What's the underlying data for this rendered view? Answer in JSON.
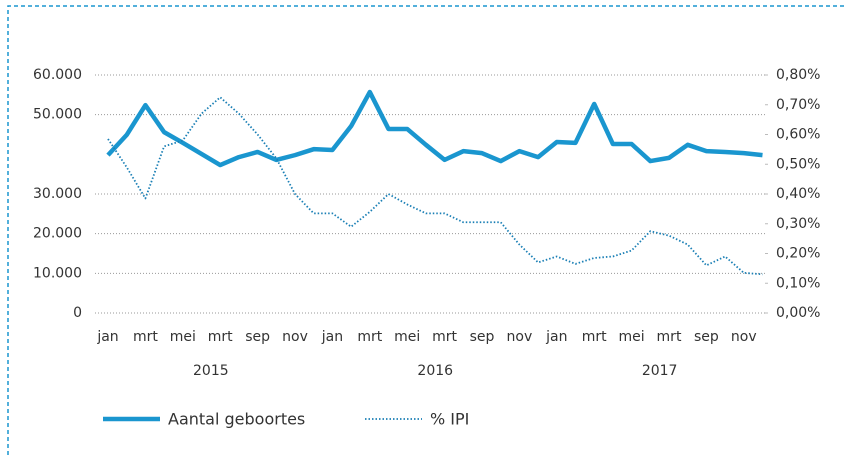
{
  "chart_data": {
    "type": "line",
    "categories": [
      "jan",
      null,
      "mrt",
      null,
      "mei",
      null,
      "mrt",
      null,
      "sep",
      null,
      "nov",
      null,
      "jan",
      null,
      "mrt",
      null,
      "mei",
      null,
      "mrt",
      null,
      "sep",
      null,
      "nov",
      null,
      "jan",
      null,
      "mrt",
      null,
      "mei",
      null,
      "mrt",
      null,
      "sep",
      null,
      "nov",
      null
    ],
    "x_groups": [
      "2015",
      "2016",
      "2017"
    ],
    "series": [
      {
        "name": "Aantal geboortes",
        "color": "#1a96cf",
        "style": "solid",
        "values": [
          39800,
          44900,
          52400,
          45600,
          42900,
          40100,
          37300,
          39300,
          40600,
          38600,
          39800,
          41300,
          41100,
          47100,
          55700,
          46400,
          46400,
          42400,
          38600,
          40800,
          40300,
          38300,
          40800,
          39300,
          43100,
          42900,
          52700,
          42600,
          42600,
          38300,
          39100,
          42400,
          40800,
          40600,
          40300,
          39800
        ]
      },
      {
        "name": "% IPI",
        "color": "#1a7fb5",
        "style": "dotted",
        "axis": "y2",
        "values": [
          0.585,
          0.49,
          0.385,
          0.56,
          0.58,
          0.67,
          0.725,
          0.67,
          0.6,
          0.52,
          0.4,
          0.335,
          0.335,
          0.29,
          0.34,
          0.4,
          0.365,
          0.335,
          0.335,
          0.305,
          0.305,
          0.305,
          0.23,
          0.17,
          0.19,
          0.165,
          0.185,
          0.19,
          0.21,
          0.275,
          0.26,
          0.23,
          0.16,
          0.19,
          0.135,
          0.13
        ]
      }
    ],
    "ylim": [
      0,
      60000
    ],
    "yticks": [
      0,
      {
        "value": 10000,
        "label": "10.000"
      },
      {
        "value": 20000,
        "label": "20.000"
      },
      {
        "value": 30000,
        "label": "30.000"
      },
      {
        "value": 50000,
        "label": "50.000"
      },
      {
        "value": 60000,
        "label": "60.000"
      }
    ],
    "y2lim": [
      0,
      0.8
    ],
    "y2ticks": [
      {
        "value": 0,
        "label": "0,00%"
      },
      {
        "value": 0.1,
        "label": "0,10%"
      },
      {
        "value": 0.2,
        "label": "0,20%"
      },
      {
        "value": 0.3,
        "label": "0,30%"
      },
      {
        "value": 0.4,
        "label": "0,40%"
      },
      {
        "value": 0.5,
        "label": "0,50%"
      },
      {
        "value": 0.6,
        "label": "0,60%"
      },
      {
        "value": 0.7,
        "label": "0,70%"
      },
      {
        "value": 0.8,
        "label": "0,80%"
      }
    ],
    "grid": true
  }
}
